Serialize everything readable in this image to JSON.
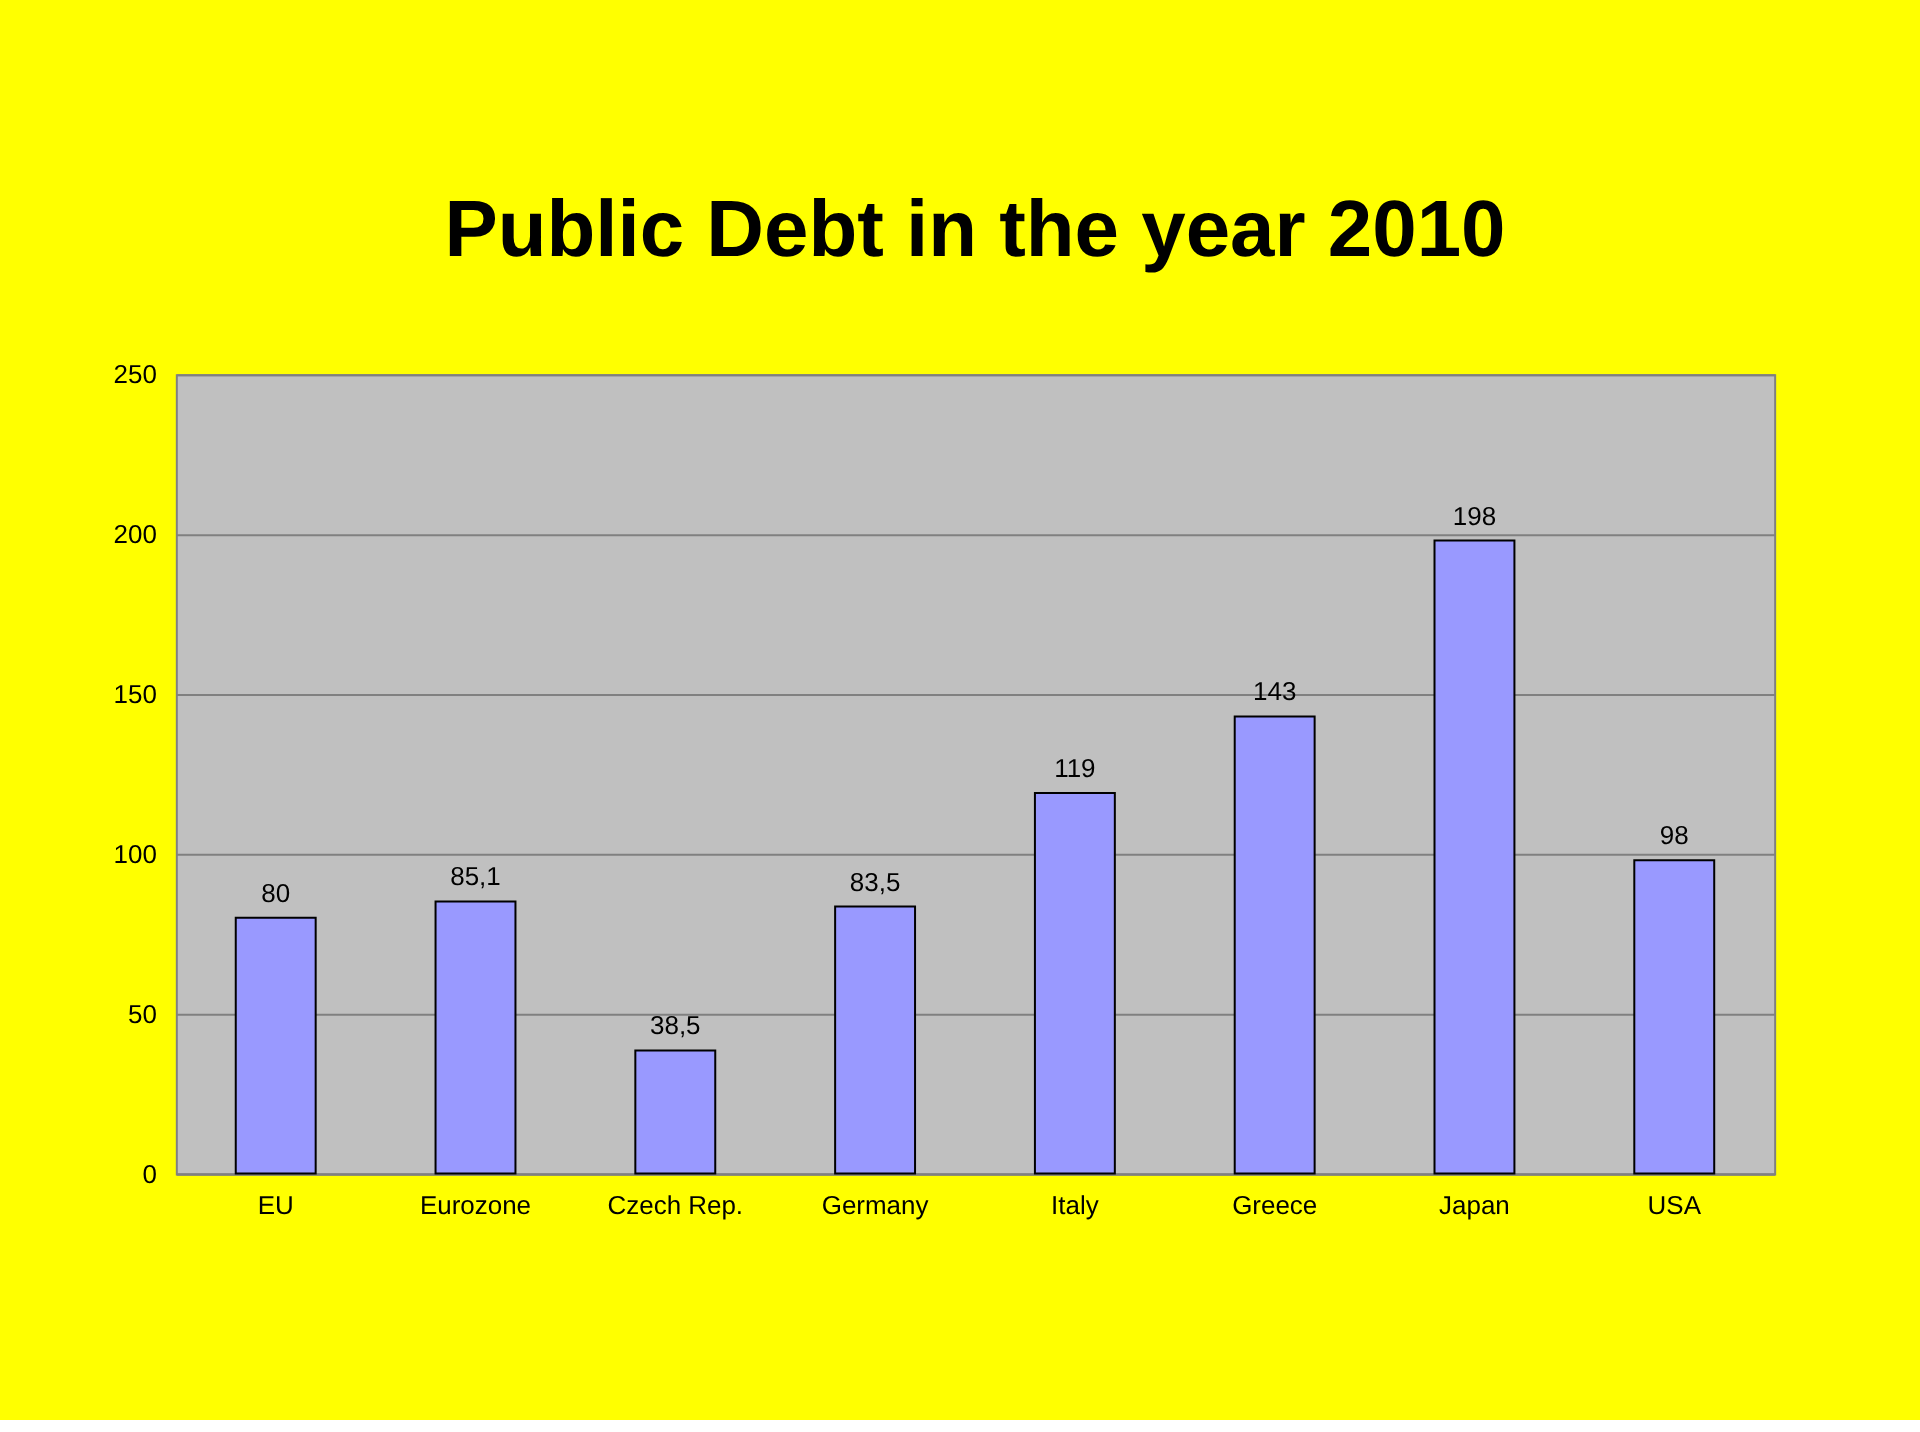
{
  "chart_data": {
    "type": "bar",
    "title": "Public Debt in the year 2010",
    "categories": [
      "EU",
      "Eurozone",
      "Czech Rep.",
      "Germany",
      "Italy",
      "Greece",
      "Japan",
      "USA"
    ],
    "values": [
      80,
      85.1,
      38.5,
      83.5,
      119,
      143,
      198,
      98
    ],
    "value_labels": [
      "80",
      "85,1",
      "38,5",
      "83,5",
      "119",
      "143",
      "198",
      "98"
    ],
    "color": "#9999ff",
    "ylim": [
      0,
      250
    ],
    "yticks": [
      0,
      50,
      100,
      150,
      200,
      250
    ],
    "grid": "y"
  }
}
